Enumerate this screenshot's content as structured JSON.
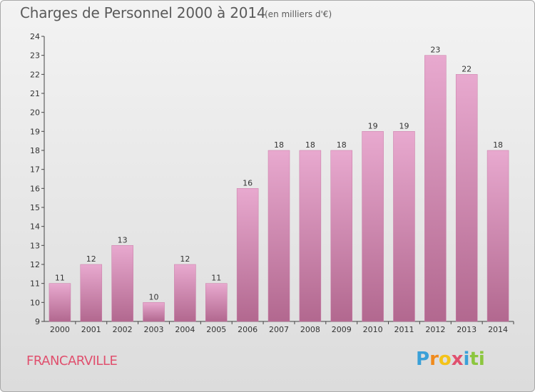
{
  "title": "Charges de Personnel 2000 à 2014",
  "subtitle": "(en milliers d'€)",
  "commune": "FRANCARVILLE",
  "logo": {
    "text": "Proxiti",
    "letters": [
      "P",
      "r",
      "o",
      "x",
      "i",
      "t",
      "i"
    ]
  },
  "colors": {
    "bar_top": "#e8a9cf",
    "bar_bottom": "#b2688f",
    "bar_edge": "#c97aa6",
    "text": "#333333",
    "commune": "#e0506e",
    "logo": [
      "#3aa0d8",
      "#f08a1c",
      "#f4c319",
      "#e0506e",
      "#3aa0d8",
      "#8cc63e",
      "#8cc63e"
    ]
  },
  "chart_data": {
    "type": "bar",
    "title": "Charges de Personnel 2000 à 2014",
    "subtitle": "(en milliers d'€)",
    "categories": [
      "2000",
      "2001",
      "2002",
      "2003",
      "2004",
      "2005",
      "2006",
      "2007",
      "2008",
      "2009",
      "2010",
      "2011",
      "2012",
      "2013",
      "2014"
    ],
    "values": [
      11,
      12,
      13,
      10,
      12,
      11,
      16,
      18,
      18,
      18,
      19,
      19,
      23,
      22,
      18
    ],
    "ylim": [
      9,
      24
    ],
    "yticks": [
      9,
      10,
      11,
      12,
      13,
      14,
      15,
      16,
      17,
      18,
      19,
      20,
      21,
      22,
      23,
      24
    ],
    "grid": false,
    "data_labels": true
  }
}
